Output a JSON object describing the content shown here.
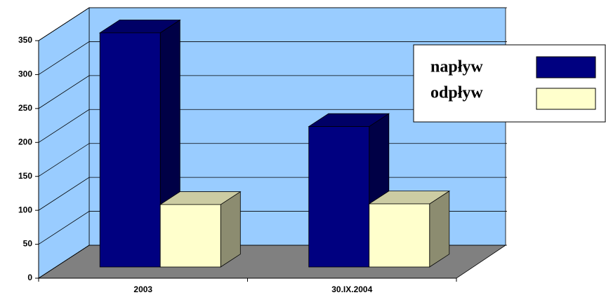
{
  "chart_data": {
    "type": "bar3d",
    "categories": [
      "2003",
      "30.IX.2004"
    ],
    "series": [
      {
        "name": "napływ",
        "color": "#000080",
        "values": [
          345,
          207
        ]
      },
      {
        "name": "odpływ",
        "color": "#ffffcc",
        "values": [
          92,
          93
        ]
      }
    ],
    "ylim": [
      0,
      350
    ],
    "yticks": [
      0,
      50,
      100,
      150,
      200,
      250,
      300,
      350
    ],
    "grid": true,
    "legend": "top-right"
  }
}
